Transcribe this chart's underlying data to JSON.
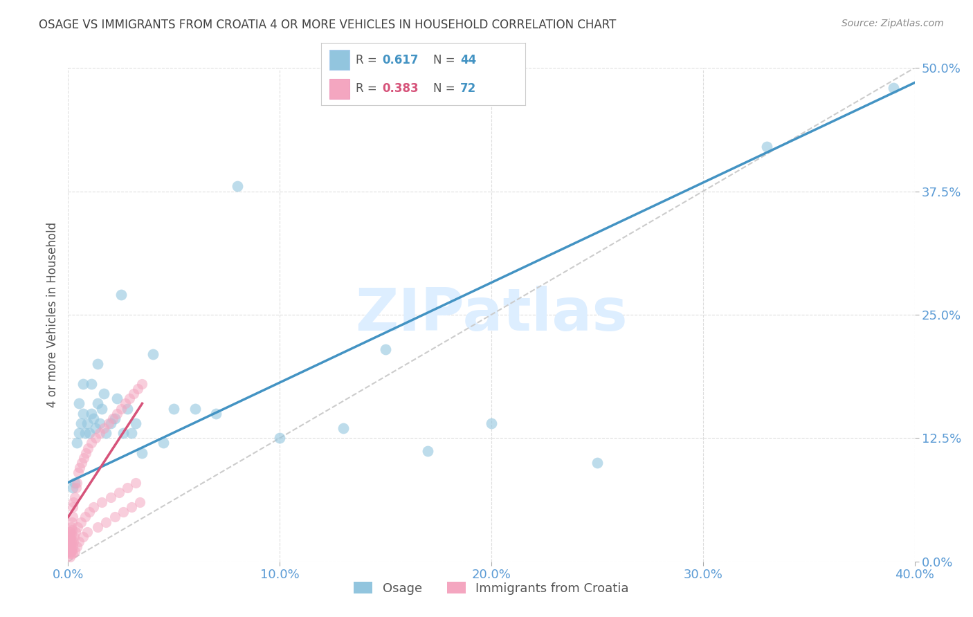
{
  "title": "OSAGE VS IMMIGRANTS FROM CROATIA 4 OR MORE VEHICLES IN HOUSEHOLD CORRELATION CHART",
  "source": "Source: ZipAtlas.com",
  "ylabel": "4 or more Vehicles in Household",
  "xlim": [
    0.0,
    0.4
  ],
  "ylim": [
    0.0,
    0.5
  ],
  "legend1_r": "0.617",
  "legend1_n": "44",
  "legend2_r": "0.383",
  "legend2_n": "72",
  "blue_color": "#92c5de",
  "pink_color": "#f4a6c0",
  "line_blue": "#4393c3",
  "line_pink": "#d6537a",
  "line_dashed_color": "#cccccc",
  "watermark": "ZIPatlas",
  "watermark_color": "#ddeeff",
  "title_color": "#404040",
  "tick_color": "#5b9bd5",
  "ylabel_color": "#555555",
  "osage_scatter_x": [
    0.002,
    0.003,
    0.004,
    0.005,
    0.005,
    0.006,
    0.007,
    0.007,
    0.008,
    0.009,
    0.01,
    0.011,
    0.011,
    0.012,
    0.013,
    0.014,
    0.014,
    0.015,
    0.016,
    0.017,
    0.018,
    0.02,
    0.022,
    0.023,
    0.025,
    0.026,
    0.028,
    0.03,
    0.032,
    0.035,
    0.04,
    0.045,
    0.05,
    0.06,
    0.07,
    0.08,
    0.1,
    0.13,
    0.15,
    0.17,
    0.2,
    0.25,
    0.33,
    0.39
  ],
  "osage_scatter_y": [
    0.075,
    0.08,
    0.12,
    0.13,
    0.16,
    0.14,
    0.15,
    0.18,
    0.13,
    0.14,
    0.13,
    0.15,
    0.18,
    0.145,
    0.135,
    0.16,
    0.2,
    0.14,
    0.155,
    0.17,
    0.13,
    0.14,
    0.145,
    0.165,
    0.27,
    0.13,
    0.155,
    0.13,
    0.14,
    0.11,
    0.21,
    0.12,
    0.155,
    0.155,
    0.15,
    0.38,
    0.125,
    0.135,
    0.215,
    0.112,
    0.14,
    0.1,
    0.42,
    0.48
  ],
  "croatia_scatter_x": [
    0.0002,
    0.0003,
    0.0004,
    0.0005,
    0.0006,
    0.0007,
    0.0008,
    0.0009,
    0.001,
    0.001,
    0.001,
    0.0012,
    0.0012,
    0.0013,
    0.0014,
    0.0015,
    0.0015,
    0.0016,
    0.0017,
    0.0018,
    0.0019,
    0.002,
    0.002,
    0.0022,
    0.0023,
    0.0025,
    0.0026,
    0.0028,
    0.003,
    0.0032,
    0.0035,
    0.0038,
    0.004,
    0.0042,
    0.0045,
    0.0048,
    0.005,
    0.0055,
    0.006,
    0.0065,
    0.007,
    0.0075,
    0.008,
    0.0085,
    0.009,
    0.0095,
    0.01,
    0.011,
    0.012,
    0.013,
    0.014,
    0.015,
    0.016,
    0.017,
    0.018,
    0.019,
    0.02,
    0.021,
    0.022,
    0.023,
    0.024,
    0.025,
    0.026,
    0.027,
    0.028,
    0.029,
    0.03,
    0.031,
    0.032,
    0.033,
    0.034,
    0.035
  ],
  "croatia_scatter_y": [
    0.02,
    0.01,
    0.025,
    0.015,
    0.008,
    0.03,
    0.012,
    0.022,
    0.005,
    0.018,
    0.03,
    0.008,
    0.025,
    0.015,
    0.035,
    0.01,
    0.028,
    0.02,
    0.04,
    0.012,
    0.032,
    0.008,
    0.045,
    0.015,
    0.055,
    0.02,
    0.06,
    0.025,
    0.01,
    0.065,
    0.03,
    0.075,
    0.015,
    0.08,
    0.035,
    0.09,
    0.02,
    0.095,
    0.04,
    0.1,
    0.025,
    0.105,
    0.045,
    0.11,
    0.03,
    0.115,
    0.05,
    0.12,
    0.055,
    0.125,
    0.035,
    0.13,
    0.06,
    0.135,
    0.04,
    0.14,
    0.065,
    0.145,
    0.045,
    0.15,
    0.07,
    0.155,
    0.05,
    0.16,
    0.075,
    0.165,
    0.055,
    0.17,
    0.08,
    0.175,
    0.06,
    0.18
  ],
  "blue_trend_x": [
    0.0,
    0.4
  ],
  "blue_trend_y": [
    0.08,
    0.485
  ],
  "pink_trend_x": [
    0.0,
    0.035
  ],
  "pink_trend_y": [
    0.045,
    0.16
  ],
  "dashed_line_x": [
    0.0,
    0.4
  ],
  "dashed_line_y": [
    0.0,
    0.5
  ],
  "xticks": [
    0.0,
    0.1,
    0.2,
    0.3,
    0.4
  ],
  "yticks": [
    0.0,
    0.125,
    0.25,
    0.375,
    0.5
  ],
  "xtick_labels": [
    "0.0%",
    "10.0%",
    "20.0%",
    "30.0%",
    "40.0%"
  ],
  "ytick_labels": [
    "0.0%",
    "12.5%",
    "25.0%",
    "37.5%",
    "50.0%"
  ]
}
